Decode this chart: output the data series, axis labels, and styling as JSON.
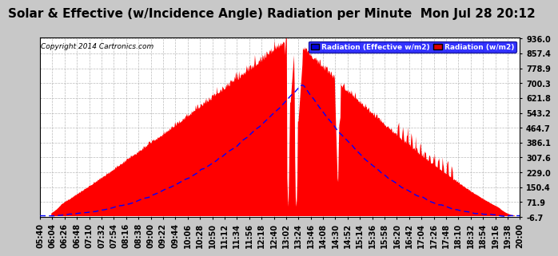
{
  "title": "Solar & Effective (w/Incidence Angle) Radiation per Minute  Mon Jul 28 20:12",
  "copyright": "Copyright 2014 Cartronics.com",
  "legend_eff": "Radiation (Effective w/m2)",
  "legend_rad": "Radiation (w/m2)",
  "ymin": -6.7,
  "ymax": 936.0,
  "yticks": [
    936.0,
    857.4,
    778.9,
    700.3,
    621.8,
    543.2,
    464.7,
    386.1,
    307.6,
    229.0,
    150.4,
    71.9,
    -6.7
  ],
  "xtick_labels": [
    "05:40",
    "06:04",
    "06:26",
    "06:48",
    "07:10",
    "07:32",
    "07:54",
    "08:16",
    "08:38",
    "09:00",
    "09:22",
    "09:44",
    "10:06",
    "10:28",
    "10:50",
    "11:12",
    "11:34",
    "11:56",
    "12:18",
    "12:40",
    "13:02",
    "13:24",
    "13:46",
    "14:08",
    "14:30",
    "14:52",
    "15:14",
    "15:36",
    "15:58",
    "16:20",
    "16:42",
    "17:04",
    "17:26",
    "17:48",
    "18:10",
    "18:32",
    "18:54",
    "19:16",
    "19:38",
    "20:00"
  ],
  "bg_color": "#c8c8c8",
  "plot_bg": "#ffffff",
  "red_color": "#ff0000",
  "blue_color": "#0000ff",
  "title_fontsize": 11,
  "tick_fontsize": 7
}
